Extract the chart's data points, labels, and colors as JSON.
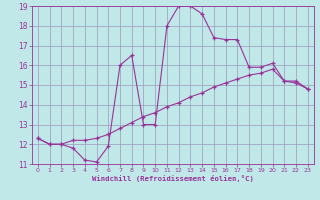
{
  "xlabel": "Windchill (Refroidissement éolien,°C)",
  "bg_color": "#c0e8e8",
  "grid_color": "#9999bb",
  "line_color": "#993399",
  "xlim": [
    -0.5,
    23.5
  ],
  "ylim": [
    11,
    19
  ],
  "xticks": [
    0,
    1,
    2,
    3,
    4,
    5,
    6,
    7,
    8,
    9,
    10,
    11,
    12,
    13,
    14,
    15,
    16,
    17,
    18,
    19,
    20,
    21,
    22,
    23
  ],
  "yticks": [
    11,
    12,
    13,
    14,
    15,
    16,
    17,
    18,
    19
  ],
  "series1_x": [
    0,
    1,
    2,
    3,
    4,
    5,
    6,
    7,
    8,
    9,
    10,
    11,
    12,
    13,
    14,
    15,
    16,
    17,
    18,
    19,
    20,
    21,
    22,
    23
  ],
  "series1_y": [
    12.3,
    12.0,
    12.0,
    11.8,
    11.2,
    11.1,
    11.9,
    16.0,
    16.5,
    13.0,
    13.0,
    18.0,
    19.0,
    19.0,
    18.6,
    17.4,
    17.3,
    17.3,
    15.9,
    15.9,
    16.1,
    15.2,
    15.2,
    14.8
  ],
  "series2_x": [
    0,
    1,
    2,
    3,
    4,
    5,
    6,
    7,
    8,
    9,
    10,
    11,
    12,
    13,
    14,
    15,
    16,
    17,
    18,
    19,
    20,
    21,
    22,
    23
  ],
  "series2_y": [
    12.3,
    12.0,
    12.0,
    12.2,
    12.2,
    12.3,
    12.5,
    12.8,
    13.1,
    13.4,
    13.6,
    13.9,
    14.1,
    14.4,
    14.6,
    14.9,
    15.1,
    15.3,
    15.5,
    15.6,
    15.8,
    15.2,
    15.1,
    14.8
  ]
}
